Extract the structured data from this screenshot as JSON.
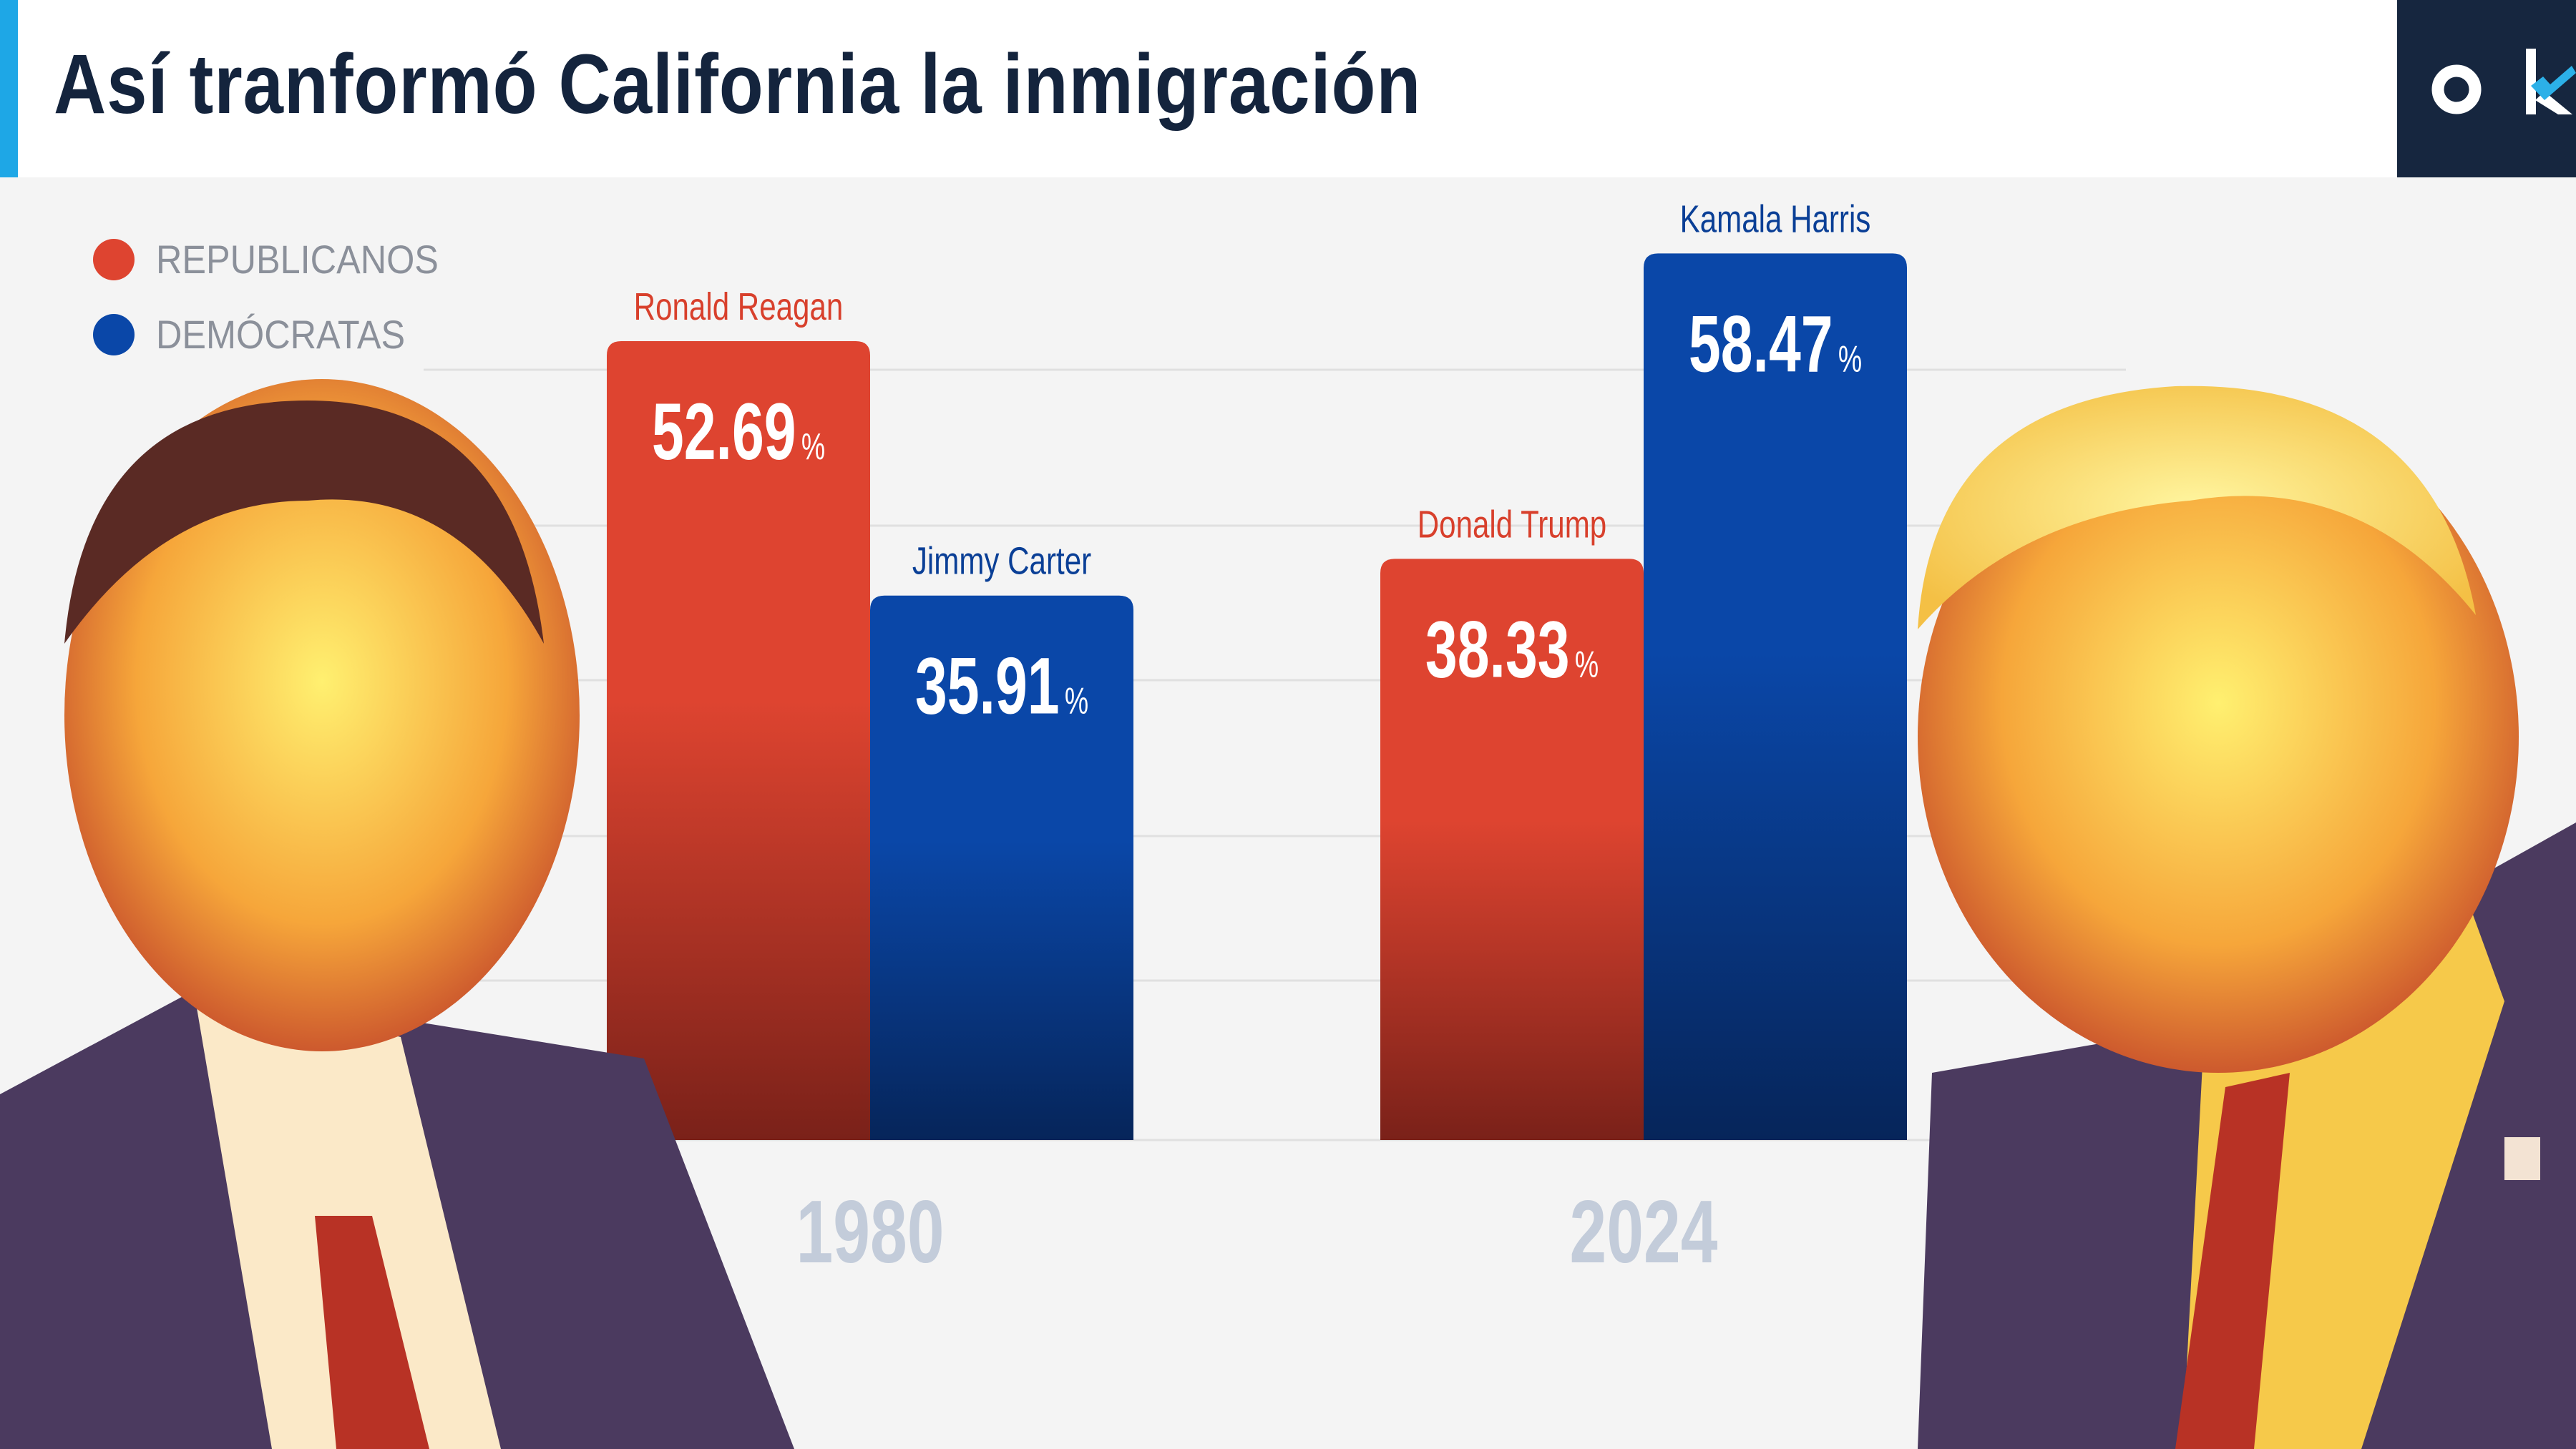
{
  "header": {
    "title": "Así tranformó California la inmigración",
    "logo_text": "ok",
    "accent_color": "#1ea7e6",
    "logo_bg": "#16263f"
  },
  "legend": [
    {
      "label": "REPUBLICANOS",
      "color": "#de4430"
    },
    {
      "label": "DEMÓCRATAS",
      "color": "#0a47a8"
    }
  ],
  "chart_data": {
    "type": "bar",
    "categories": [
      "1980",
      "2024"
    ],
    "unit": "%",
    "grid": true,
    "legend_position": "top-left",
    "bars": [
      {
        "year": "1980",
        "party": "REPUBLICANOS",
        "candidate": "Ronald Reagan",
        "value": 52.69,
        "label": "52.69"
      },
      {
        "year": "1980",
        "party": "DEMÓCRATAS",
        "candidate": "Jimmy Carter",
        "value": 35.91,
        "label": "35.91"
      },
      {
        "year": "2024",
        "party": "REPUBLICANOS",
        "candidate": "Donald Trump",
        "value": 38.33,
        "label": "38.33"
      },
      {
        "year": "2024",
        "party": "DEMÓCRATAS",
        "candidate": "Kamala Harris",
        "value": 58.47,
        "label": "58.47"
      }
    ],
    "colors": {
      "REPUBLICANOS": [
        "#de4430",
        "#7a2119"
      ],
      "DEMÓCRATAS": [
        "#0a47a8",
        "#06255a"
      ]
    }
  },
  "photos": [
    {
      "subject": "Ronald Reagan"
    },
    {
      "subject": "Donald Trump"
    }
  ]
}
